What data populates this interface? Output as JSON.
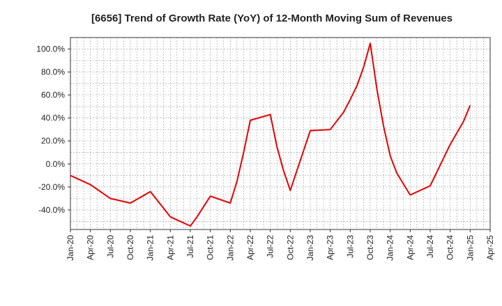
{
  "chart_data": {
    "type": "line",
    "title": "[6656]  Trend of Growth Rate (YoY) of 12-Month Moving Sum of Revenues",
    "xlabel": "",
    "ylabel": "",
    "x_ticks": [
      "Jan-20",
      "Apr-20",
      "Jul-20",
      "Oct-20",
      "Jan-21",
      "Apr-21",
      "Jul-21",
      "Oct-21",
      "Jan-22",
      "Apr-22",
      "Jul-22",
      "Oct-22",
      "Jan-23",
      "Apr-23",
      "Jul-23",
      "Oct-23",
      "Jan-24",
      "Apr-24",
      "Jul-24",
      "Oct-24",
      "Jan-25",
      "Apr-25"
    ],
    "y_ticks": [
      "-40.0%",
      "-20.0%",
      "0.0%",
      "20.0%",
      "40.0%",
      "60.0%",
      "80.0%",
      "100.0%"
    ],
    "y_tick_values": [
      -40,
      -20,
      0,
      20,
      40,
      60,
      80,
      100
    ],
    "ylim": [
      -57,
      110
    ],
    "grid": true,
    "line_color": "#e60000",
    "series": [
      {
        "values": [
          [
            "2020-01",
            -10
          ],
          [
            "2020-04",
            -18
          ],
          [
            "2020-07",
            -30
          ],
          [
            "2020-10",
            -34
          ],
          [
            "2021-01",
            -24
          ],
          [
            "2021-04",
            -46
          ],
          [
            "2021-07",
            -54
          ],
          [
            "2021-08",
            -46
          ],
          [
            "2021-10",
            -28
          ],
          [
            "2022-01",
            -34
          ],
          [
            "2022-02",
            -15
          ],
          [
            "2022-03",
            10
          ],
          [
            "2022-04",
            38
          ],
          [
            "2022-07",
            43
          ],
          [
            "2022-08",
            15
          ],
          [
            "2022-09",
            -6
          ],
          [
            "2022-10",
            -23
          ],
          [
            "2023-01",
            29
          ],
          [
            "2023-04",
            30
          ],
          [
            "2023-06",
            45
          ],
          [
            "2023-07",
            56
          ],
          [
            "2023-08",
            68
          ],
          [
            "2023-09",
            84
          ],
          [
            "2023-10",
            105
          ],
          [
            "2023-11",
            65
          ],
          [
            "2023-12",
            33
          ],
          [
            "2024-01",
            7
          ],
          [
            "2024-02",
            -8
          ],
          [
            "2024-04",
            -27
          ],
          [
            "2024-07",
            -19
          ],
          [
            "2024-10",
            17
          ],
          [
            "2024-12",
            37
          ],
          [
            "2025-01",
            51
          ]
        ]
      }
    ]
  }
}
